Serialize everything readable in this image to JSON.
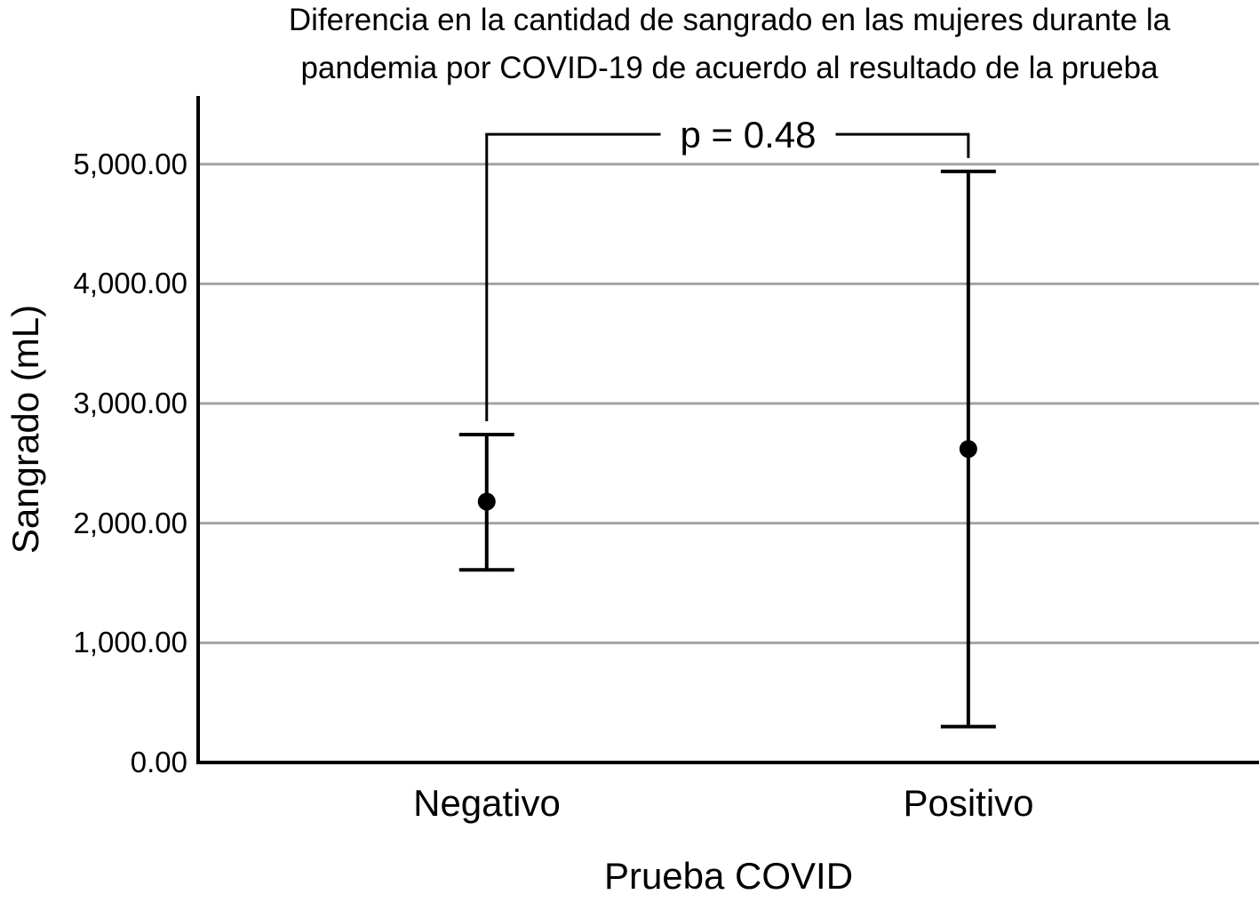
{
  "chart_data": {
    "type": "errorbar",
    "title": "Diferencia en la cantidad de sangrado en las mujeres durante la pandemia por COVID-19 de acuerdo al resultado de la prueba",
    "title_lines": [
      "Diferencia en la cantidad de sangrado en las mujeres durante la",
      "pandemia por COVID-19 de acuerdo al resultado de la prueba"
    ],
    "xlabel": "Prueba COVID",
    "ylabel": "Sangrado (mL)",
    "categories": [
      "Negativo",
      "Positivo"
    ],
    "series": [
      {
        "name": "Negativo",
        "mean": 2180,
        "ci_low": 1610,
        "ci_high": 2740
      },
      {
        "name": "Positivo",
        "mean": 2620,
        "ci_low": 300,
        "ci_high": 4940
      }
    ],
    "annotation": {
      "text": "p = 0.48",
      "y_value": 5250
    },
    "ylim": [
      0,
      5570
    ],
    "yticks": [
      0,
      1000,
      2000,
      3000,
      4000,
      5000
    ],
    "ytick_labels_desc": [
      "5,000.00",
      "4,000.00",
      "3,000.00",
      "2,000.00",
      "1,000.00",
      "0.00"
    ],
    "grid": true,
    "legend": "none",
    "marker": "filled-circle",
    "colors": {
      "foreground": "#000000",
      "gridline": "#a3a3a3",
      "background": "#ffffff"
    }
  }
}
